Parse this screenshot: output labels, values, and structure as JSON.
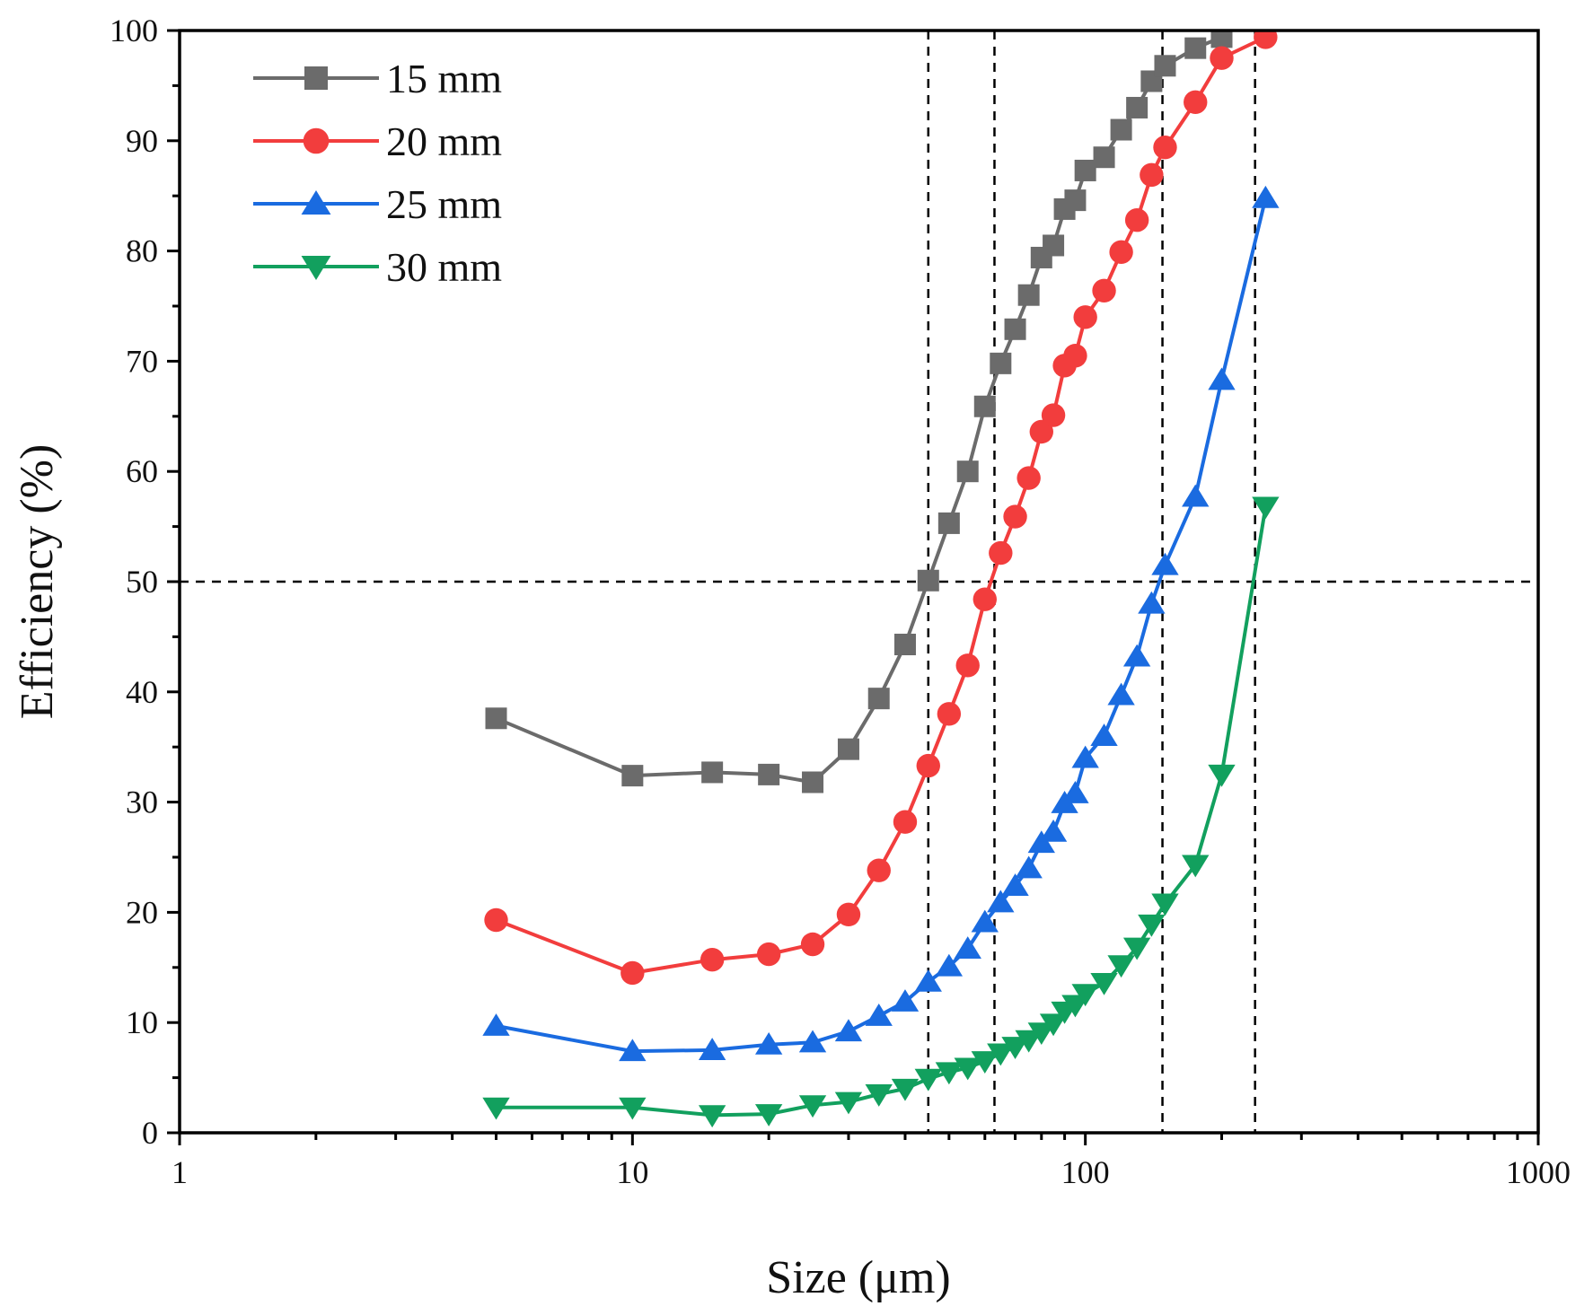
{
  "chart_data": {
    "type": "line",
    "xscale": "log",
    "xlabel": "Size (μm)",
    "ylabel": "Efficiency (%)",
    "xlim": [
      1,
      1000
    ],
    "ylim": [
      0,
      100
    ],
    "x_ticks": [
      1,
      10,
      100,
      1000
    ],
    "x_tick_labels": [
      "1",
      "10",
      "100",
      "1000"
    ],
    "y_ticks": [
      0,
      10,
      20,
      30,
      40,
      50,
      60,
      70,
      80,
      90,
      100
    ],
    "y_tick_labels": [
      "0",
      "10",
      "20",
      "30",
      "40",
      "50",
      "60",
      "70",
      "80",
      "90",
      "100"
    ],
    "reference_lines": {
      "horizontal": [
        50
      ],
      "vertical": [
        45,
        63,
        148,
        237
      ]
    },
    "legend_position": "top-left",
    "series": [
      {
        "name": "15 mm",
        "color": "#6b6b6b",
        "marker": "square",
        "x": [
          5,
          10,
          15,
          20,
          25,
          30,
          35,
          40,
          45,
          50,
          55,
          60,
          65,
          70,
          75,
          80,
          85,
          90,
          95,
          100,
          110,
          120,
          130,
          140,
          150,
          175,
          200
        ],
        "y": [
          37.6,
          32.4,
          32.7,
          32.5,
          31.8,
          34.8,
          39.4,
          44.3,
          50.1,
          55.3,
          60.0,
          65.9,
          69.8,
          72.9,
          76.0,
          79.4,
          80.5,
          83.8,
          84.6,
          87.3,
          88.5,
          91.0,
          93.0,
          95.4,
          96.8,
          98.4,
          99.4
        ]
      },
      {
        "name": "20 mm",
        "color": "#f23d3d",
        "marker": "circle",
        "x": [
          5,
          10,
          15,
          20,
          25,
          30,
          35,
          40,
          45,
          50,
          55,
          60,
          65,
          70,
          75,
          80,
          85,
          90,
          95,
          100,
          110,
          120,
          130,
          140,
          150,
          175,
          200,
          250
        ],
        "y": [
          19.3,
          14.5,
          15.7,
          16.2,
          17.1,
          19.8,
          23.8,
          28.2,
          33.3,
          38.0,
          42.4,
          48.4,
          52.6,
          55.9,
          59.4,
          63.6,
          65.1,
          69.6,
          70.5,
          74.0,
          76.4,
          79.9,
          82.8,
          86.9,
          89.4,
          93.5,
          97.5,
          99.4
        ]
      },
      {
        "name": "25 mm",
        "color": "#1a6be0",
        "marker": "triangle-up",
        "x": [
          5,
          10,
          15,
          20,
          25,
          30,
          35,
          40,
          45,
          50,
          55,
          60,
          65,
          70,
          75,
          80,
          85,
          90,
          95,
          100,
          110,
          120,
          130,
          140,
          150,
          175,
          200,
          250
        ],
        "y": [
          9.7,
          7.4,
          7.5,
          8.0,
          8.2,
          9.2,
          10.6,
          11.9,
          13.7,
          15.1,
          16.7,
          19.1,
          20.9,
          22.4,
          24.0,
          26.3,
          27.3,
          29.9,
          30.8,
          34.0,
          36.0,
          39.7,
          43.2,
          48.0,
          51.5,
          57.7,
          68.3,
          84.8
        ]
      },
      {
        "name": "30 mm",
        "color": "#12a05e",
        "marker": "triangle-down",
        "x": [
          5,
          10,
          15,
          20,
          25,
          30,
          35,
          40,
          45,
          50,
          55,
          60,
          65,
          70,
          75,
          80,
          85,
          90,
          95,
          100,
          110,
          120,
          130,
          140,
          150,
          175,
          200,
          250
        ],
        "y": [
          2.3,
          2.3,
          1.6,
          1.7,
          2.5,
          2.8,
          3.5,
          4.0,
          4.9,
          5.5,
          5.9,
          6.5,
          7.2,
          7.8,
          8.4,
          9.1,
          9.9,
          11.0,
          11.6,
          12.6,
          13.6,
          15.2,
          16.8,
          18.9,
          20.8,
          24.3,
          32.5,
          56.8
        ]
      }
    ]
  }
}
